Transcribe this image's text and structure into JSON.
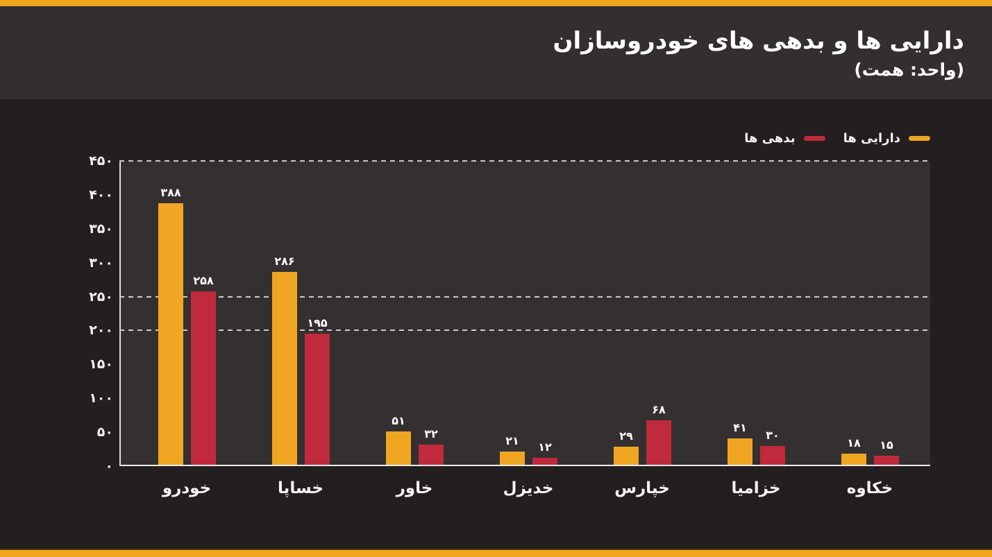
{
  "header": {
    "title": "دارایی ها و بدهی های خودروسازان",
    "subtitle": "(واحد: همت)"
  },
  "legend": [
    {
      "label": "دارایی ها",
      "color": "#F0A623"
    },
    {
      "label": "بدهی ها",
      "color": "#C02A3C"
    }
  ],
  "colors": {
    "accent_yellow": "#F0A71E",
    "series_assets": "#F0A623",
    "series_liabilities": "#C02A3C",
    "header_bg": "#332E2F",
    "page_bg": "#231F20",
    "plot_bg": "#343031",
    "text": "#FFFFFF"
  },
  "chart_data": {
    "type": "bar",
    "title": "دارایی ها و بدهی های خودروسازان",
    "unit_label": "(واحد: همت)",
    "categories": [
      "خودرو",
      "خساپا",
      "خاور",
      "خدیزل",
      "خپارس",
      "خزامیا",
      "خکاوه"
    ],
    "series": [
      {
        "name": "دارایی ها",
        "color": "#F0A623",
        "values": [
          388,
          286,
          51,
          21,
          29,
          41,
          18
        ],
        "values_fa": [
          "۳۸۸",
          "۲۸۶",
          "۵۱",
          "۲۱",
          "۲۹",
          "۴۱",
          "۱۸"
        ]
      },
      {
        "name": "بدهی ها",
        "color": "#C02A3C",
        "values": [
          258,
          195,
          32,
          12,
          68,
          30,
          15
        ],
        "values_fa": [
          "۲۵۸",
          "۱۹۵",
          "۳۲",
          "۱۲",
          "۶۸",
          "۳۰",
          "۱۵"
        ]
      }
    ],
    "ylim": [
      0,
      450
    ],
    "yticks": [
      0,
      50,
      100,
      150,
      200,
      250,
      300,
      350,
      400,
      450
    ],
    "yticks_fa": [
      "۰",
      "۵۰",
      "۱۰۰",
      "۱۵۰",
      "۲۰۰",
      "۲۵۰",
      "۳۰۰",
      "۳۵۰",
      "۴۰۰",
      "۴۵۰"
    ],
    "dashed_gridlines_at": [
      450,
      250,
      200
    ],
    "grid": "partial-dashed",
    "legend_position": "top-right",
    "value_labels": true
  }
}
